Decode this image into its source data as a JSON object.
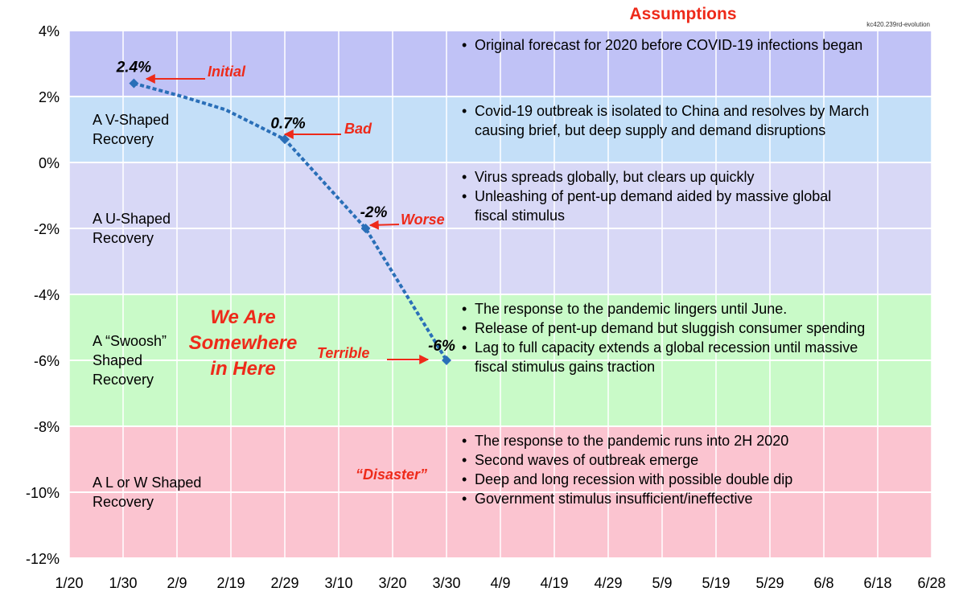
{
  "chart_data": {
    "type": "line",
    "title": "Assumptions",
    "source_tag": "kc420.239rd-evolution",
    "ylim": [
      -12,
      4
    ],
    "y_ticks": [
      "4%",
      "2%",
      "0%",
      "-2%",
      "-4%",
      "-6%",
      "-8%",
      "-10%",
      "-12%"
    ],
    "x_ticks": [
      "1/20",
      "1/30",
      "2/9",
      "2/19",
      "2/29",
      "3/10",
      "3/20",
      "3/30",
      "4/9",
      "4/19",
      "4/29",
      "5/9",
      "5/19",
      "5/29",
      "6/8",
      "6/18",
      "6/28"
    ],
    "x_range": [
      "2020-01-20",
      "2020-06-28"
    ],
    "grid": true,
    "series": [
      {
        "color": "#2a6fb8",
        "points": [
          {
            "x": "2020-02-01",
            "y": 2.4
          },
          {
            "x": "2020-02-10",
            "y": 2.0
          },
          {
            "x": "2020-02-18",
            "y": 1.6
          },
          {
            "x": "2020-02-29",
            "y": 0.7
          },
          {
            "x": "2020-03-15",
            "y": -2.0
          },
          {
            "x": "2020-03-30",
            "y": -6.0
          }
        ]
      }
    ],
    "bands": [
      {
        "from": 4,
        "to": 2,
        "color": "#c0c2f6",
        "scenario": [],
        "assumptions": [
          "Original forecast for 2020 before COVID-19 infections began"
        ]
      },
      {
        "from": 2,
        "to": 0,
        "color": "#c4dff8",
        "scenario": [
          "A V-Shaped",
          "Recovery"
        ],
        "assumptions": [
          "Covid-19 outbreak is isolated to China and resolves by March",
          "causing brief, but deep supply and demand disruptions"
        ],
        "assumption_bullets": [
          true,
          false
        ]
      },
      {
        "from": 0,
        "to": -4,
        "color": "#d8d8f6",
        "scenario": [
          "A U-Shaped",
          "Recovery"
        ],
        "assumptions": [
          "Virus spreads globally, but clears up quickly",
          "Unleashing of pent-up demand aided by massive global",
          "fiscal stimulus"
        ],
        "assumption_bullets": [
          true,
          true,
          false
        ]
      },
      {
        "from": -4,
        "to": -8,
        "color": "#c9fac8",
        "scenario": [
          "A “Swoosh”",
          "Shaped",
          "Recovery"
        ],
        "assumptions": [
          "The response to the pandemic lingers until June.",
          "Release of pent-up demand but sluggish consumer spending",
          "Lag to full capacity extends a global recession until massive",
          "fiscal stimulus gains traction"
        ],
        "assumption_bullets": [
          true,
          true,
          true,
          false
        ]
      },
      {
        "from": -8,
        "to": -12,
        "color": "#fbc4d0",
        "scenario": [
          "A L or W Shaped",
          "Recovery"
        ],
        "assumptions": [
          "The response to the pandemic runs into 2H 2020",
          "Second waves of outbreak emerge",
          "Deep and long recession with possible double dip",
          "Government stimulus insufficient/ineffective"
        ],
        "assumption_bullets": [
          true,
          true,
          true,
          true
        ]
      }
    ],
    "data_labels": [
      {
        "text": "2.4%",
        "x": "2020-02-01",
        "y": 2.4
      },
      {
        "text": "0.7%",
        "x": "2020-02-29",
        "y": 0.7
      },
      {
        "text": "-2%",
        "x": "2020-03-15",
        "y": -2.0
      },
      {
        "text": "-6%",
        "x": "2020-03-30",
        "y": -6.0
      }
    ],
    "annotations": [
      {
        "text": "Initial",
        "arrow": true
      },
      {
        "text": "Bad",
        "arrow": true
      },
      {
        "text": "Worse",
        "arrow": true
      },
      {
        "text": "Terrible",
        "arrow": true
      },
      {
        "text": "“Disaster”",
        "arrow": false
      }
    ],
    "callout": [
      "We Are",
      "Somewhere",
      "in Here"
    ]
  },
  "colors": {
    "accent": "#ee2a1a",
    "line": "#2a6fb8",
    "grid": "#ffffff"
  }
}
